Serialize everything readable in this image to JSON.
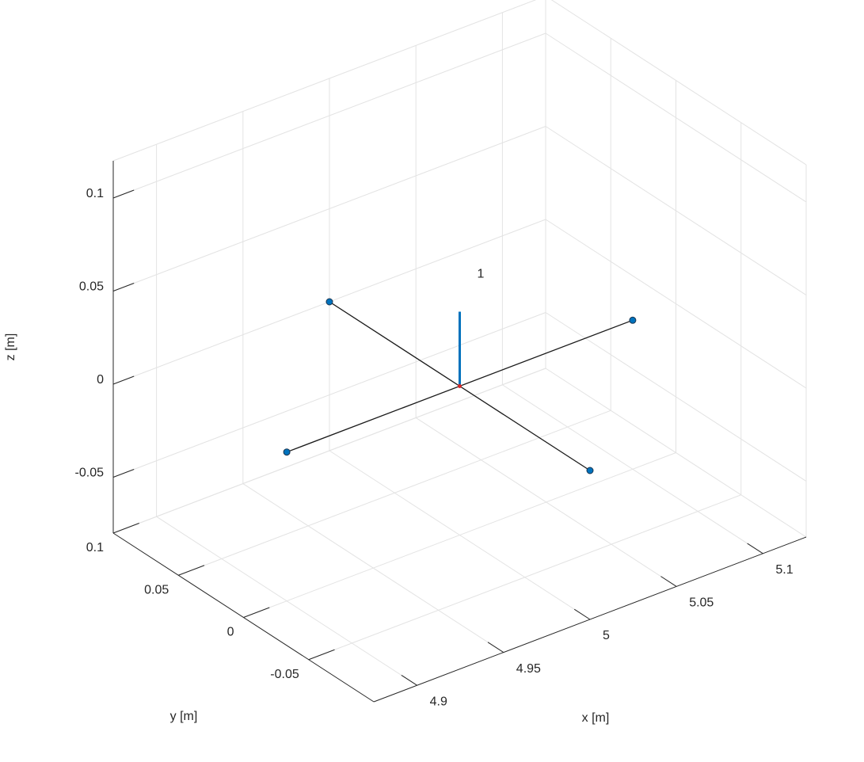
{
  "chart_data": {
    "type": "plot3d",
    "xlabel": "x [m]",
    "ylabel": "y [m]",
    "zlabel": "z [m]",
    "xlim": [
      4.875,
      5.125
    ],
    "ylim": [
      -0.1,
      0.1
    ],
    "zlim": [
      -0.08,
      0.12
    ],
    "xticks": [
      4.9,
      4.95,
      5,
      5.05,
      5.1
    ],
    "yticks": [
      -0.05,
      0,
      0.05,
      0.1
    ],
    "zticks": [
      -0.05,
      0,
      0.05,
      0.1
    ],
    "grid": true,
    "lines": [
      {
        "color": "#1a1a1a",
        "x": [
          4.9,
          5.1
        ],
        "y": [
          0,
          0
        ],
        "z": [
          0,
          0
        ]
      },
      {
        "color": "#1a1a1a",
        "x": [
          5,
          5
        ],
        "y": [
          -0.1,
          0.1
        ],
        "z": [
          0,
          0
        ]
      },
      {
        "color": "#0072bd",
        "x": [
          5,
          5
        ],
        "y": [
          0,
          0
        ],
        "z": [
          0,
          0.04
        ]
      }
    ],
    "points": {
      "color": "#0072bd",
      "x": [
        5.1,
        4.9,
        5,
        5
      ],
      "y": [
        0,
        0,
        0.1,
        -0.1
      ],
      "z": [
        0,
        0,
        0,
        0
      ]
    },
    "center": {
      "color": "#d62728",
      "x": [
        5
      ],
      "y": [
        0
      ],
      "z": [
        0
      ]
    },
    "annotation": {
      "text": "1",
      "x": 5,
      "y": 0,
      "z": 0.06
    }
  }
}
